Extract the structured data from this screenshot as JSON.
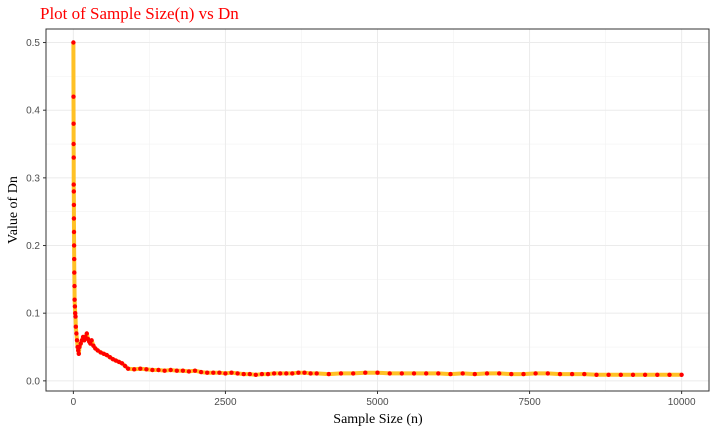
{
  "chart_data": {
    "type": "scatter",
    "title": "Plot of Sample Size(n) vs Dn",
    "xlabel": "Sample Size (n)",
    "ylabel": "Value of Dn",
    "xlim": [
      -450,
      10450
    ],
    "ylim": [
      -0.015,
      0.52
    ],
    "xticks": [
      0,
      2500,
      5000,
      7500,
      10000
    ],
    "yticks": [
      0.0,
      0.1,
      0.2,
      0.3,
      0.4,
      0.5
    ],
    "xtick_labels": [
      "0",
      "2500",
      "5000",
      "7500",
      "10000"
    ],
    "ytick_labels": [
      "0.0",
      "0.1",
      "0.2",
      "0.3",
      "0.4",
      "0.5"
    ],
    "grid": true,
    "colors": {
      "title": "#ff0000",
      "points": "#ff0000",
      "line": "#ffc125",
      "panel_border": "#333333",
      "grid": "#ebebeb"
    },
    "series": [
      {
        "x": [
          1,
          2,
          3,
          4,
          5,
          6,
          7,
          8,
          9,
          10,
          12,
          14,
          16,
          18,
          20,
          25,
          30,
          35,
          40,
          50,
          60,
          70,
          80,
          90,
          100,
          120,
          140,
          160,
          180,
          200,
          220,
          240,
          260,
          280,
          300,
          330,
          360,
          400,
          450,
          500,
          550,
          600,
          650,
          700,
          750,
          800,
          850,
          900,
          1000,
          1100,
          1200,
          1300,
          1400,
          1500,
          1600,
          1700,
          1800,
          1900,
          2000,
          2100,
          2200,
          2300,
          2400,
          2500,
          2600,
          2700,
          2800,
          2900,
          3000,
          3100,
          3200,
          3300,
          3400,
          3500,
          3600,
          3700,
          3800,
          3900,
          4000,
          4200,
          4400,
          4600,
          4800,
          5000,
          5200,
          5400,
          5600,
          5800,
          6000,
          6200,
          6400,
          6600,
          6800,
          7000,
          7200,
          7400,
          7600,
          7800,
          8000,
          8200,
          8400,
          8600,
          8800,
          9000,
          9200,
          9400,
          9600,
          9800,
          10000
        ],
        "y": [
          0.5,
          0.42,
          0.38,
          0.35,
          0.33,
          0.29,
          0.28,
          0.26,
          0.24,
          0.22,
          0.2,
          0.18,
          0.16,
          0.14,
          0.12,
          0.11,
          0.1,
          0.095,
          0.08,
          0.07,
          0.06,
          0.05,
          0.045,
          0.04,
          0.05,
          0.055,
          0.06,
          0.065,
          0.06,
          0.065,
          0.07,
          0.062,
          0.058,
          0.055,
          0.06,
          0.052,
          0.048,
          0.045,
          0.042,
          0.04,
          0.038,
          0.035,
          0.032,
          0.03,
          0.028,
          0.026,
          0.022,
          0.018,
          0.017,
          0.018,
          0.017,
          0.016,
          0.016,
          0.015,
          0.016,
          0.015,
          0.015,
          0.014,
          0.015,
          0.013,
          0.012,
          0.012,
          0.012,
          0.011,
          0.012,
          0.011,
          0.01,
          0.01,
          0.009,
          0.01,
          0.01,
          0.011,
          0.011,
          0.011,
          0.011,
          0.012,
          0.012,
          0.011,
          0.011,
          0.01,
          0.011,
          0.011,
          0.012,
          0.012,
          0.011,
          0.011,
          0.011,
          0.011,
          0.011,
          0.01,
          0.011,
          0.01,
          0.011,
          0.011,
          0.01,
          0.01,
          0.011,
          0.011,
          0.01,
          0.01,
          0.01,
          0.009,
          0.009,
          0.009,
          0.009,
          0.009,
          0.009,
          0.009,
          0.009
        ]
      }
    ]
  }
}
